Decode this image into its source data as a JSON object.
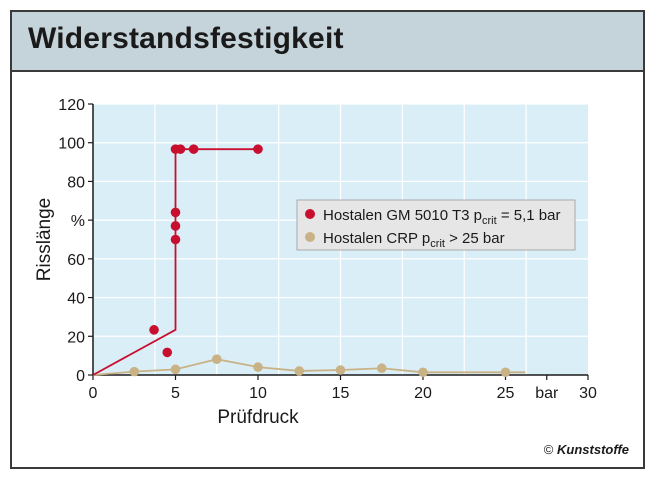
{
  "header": {
    "title": "Widerstandsfestigkeit"
  },
  "credit": {
    "symbol": "©",
    "brand": "Kunststoffe"
  },
  "colors": {
    "plot_bg": "#daeef8",
    "grid": "#ffffff",
    "red": "#c8102e",
    "tan": "#c9b285",
    "axis": "#1a1a1a",
    "legend_bg": "#e6e6e6"
  },
  "chart_data": {
    "type": "scatter",
    "xlabel": "Prüfdruck",
    "ylabel": "Risslänge",
    "x_unit": "bar",
    "y_unit": "%",
    "xlim": [
      0,
      30
    ],
    "ylim": [
      0,
      120
    ],
    "x_ticks": [
      "0",
      "5",
      "10",
      "15",
      "20",
      "25",
      "bar",
      "30"
    ],
    "y_ticks": [
      "0",
      "20",
      "40",
      "60",
      "%",
      "80",
      "100",
      "120"
    ],
    "grid": true,
    "legend_position": "right",
    "series": [
      {
        "name": "Hostalen GM 5010 T3",
        "name_sub": "crit",
        "name_rest": "= 5,1 bar",
        "color": "#c8102e",
        "points": [
          [
            3.7,
            20
          ],
          [
            4.5,
            10
          ],
          [
            5.0,
            60
          ],
          [
            5.0,
            66
          ],
          [
            5.0,
            72
          ],
          [
            5.0,
            100
          ],
          [
            5.3,
            100
          ],
          [
            6.1,
            100
          ],
          [
            10.0,
            100
          ]
        ],
        "line": [
          [
            0,
            0
          ],
          [
            5.0,
            20
          ],
          [
            5.0,
            100
          ],
          [
            10.0,
            100
          ]
        ]
      },
      {
        "name": "Hostalen CRP",
        "name_sub": "crit",
        "name_rest": "> 25 bar",
        "color": "#c9b285",
        "points": [
          [
            2.5,
            1.5
          ],
          [
            5.0,
            2.5
          ],
          [
            7.5,
            7
          ],
          [
            10.0,
            3.5
          ],
          [
            12.5,
            1.8
          ],
          [
            15.0,
            2.2
          ],
          [
            17.5,
            3
          ],
          [
            20.0,
            1.2
          ],
          [
            25.0,
            1.2
          ]
        ],
        "line": [
          [
            0,
            0
          ],
          [
            2.5,
            1.5
          ],
          [
            5.0,
            2.5
          ],
          [
            7.5,
            7
          ],
          [
            10.0,
            3.5
          ],
          [
            12.5,
            1.8
          ],
          [
            15.0,
            2.2
          ],
          [
            17.5,
            3
          ],
          [
            20.0,
            1.2
          ],
          [
            25.0,
            1.2
          ],
          [
            26.2,
            1.2
          ]
        ]
      }
    ]
  }
}
